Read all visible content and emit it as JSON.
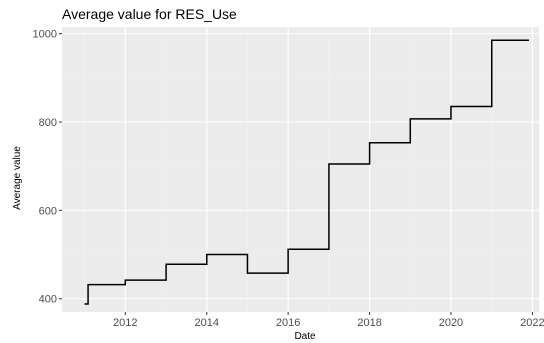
{
  "chart_data": {
    "type": "line",
    "title": "Average value for RES_Use",
    "xlabel": "Date",
    "ylabel": "Average value",
    "x_ticks": [
      "2012",
      "2014",
      "2016",
      "2018",
      "2020",
      "2022"
    ],
    "y_ticks": [
      "400",
      "600",
      "800",
      "1000"
    ],
    "xlim": [
      "2010-06-12",
      "2022-03-01"
    ],
    "ylim": [
      370,
      1015
    ],
    "grid": true,
    "step": "post",
    "series": [
      {
        "color": "#000000",
        "x": [
          "2010-12-31",
          "2011-02-01",
          "2012-01-01",
          "2013-01-01",
          "2014-01-01",
          "2015-01-01",
          "2016-01-01",
          "2017-01-01",
          "2018-01-01",
          "2019-01-01",
          "2020-01-01",
          "2021-01-01",
          "2021-12-01"
        ],
        "y": [
          388,
          432,
          442,
          478,
          500,
          458,
          512,
          705,
          753,
          807,
          835,
          985,
          985
        ]
      }
    ],
    "colors": {
      "panel_background": "#ebebeb",
      "grid_major": "#ffffff",
      "grid_minor": "#f2f2f2",
      "line": "#000000"
    }
  }
}
